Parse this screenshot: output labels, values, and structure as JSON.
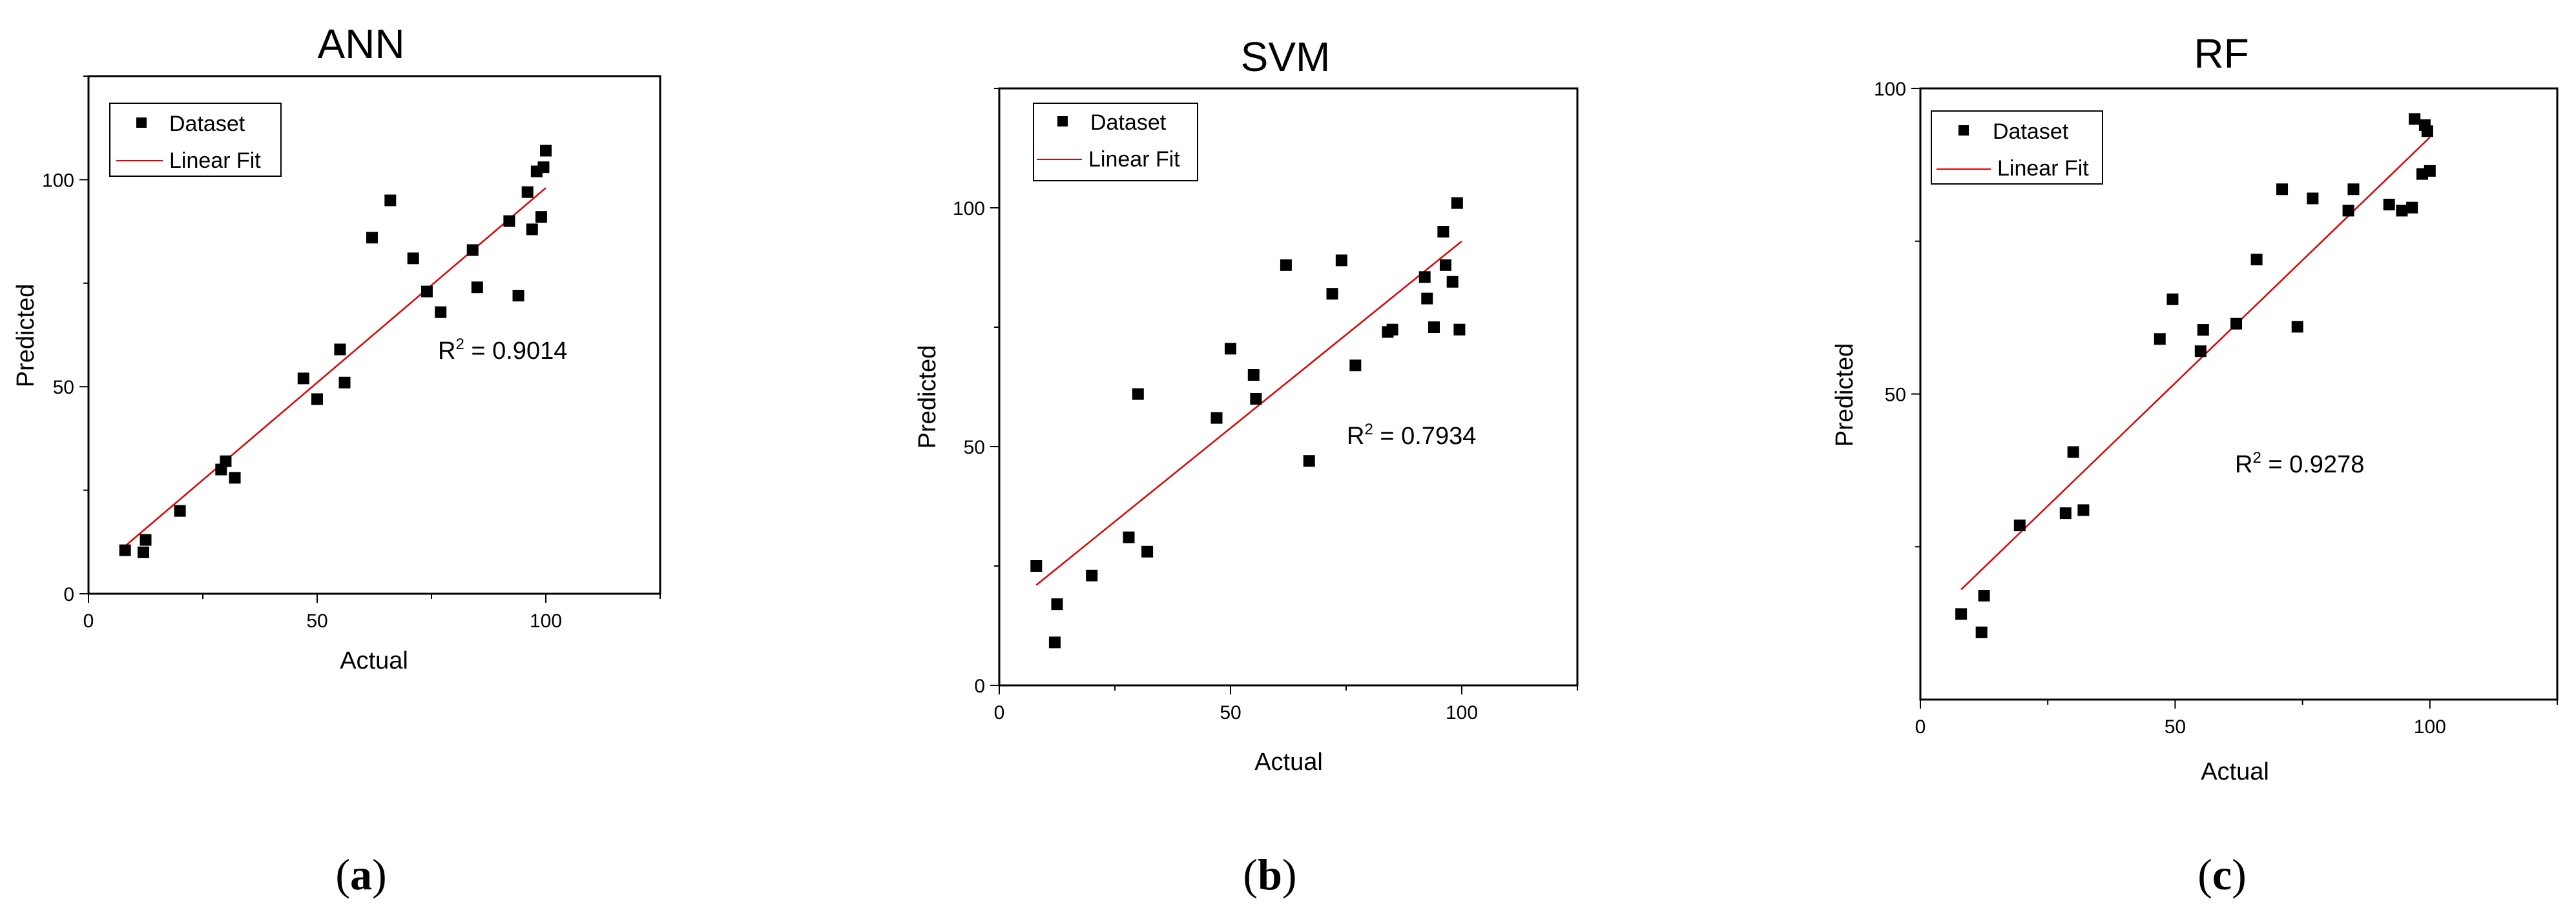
{
  "chart_data": [
    {
      "type": "scatter",
      "title": "ANN",
      "xlabel": "Actual",
      "ylabel": "Predicted",
      "xlim": [
        0,
        125
      ],
      "ylim": [
        0,
        125
      ],
      "xticks": [
        "0",
        "50",
        "100"
      ],
      "yticks": [
        "0",
        "50",
        "100"
      ],
      "xtick_values": [
        0,
        50,
        100
      ],
      "ytick_values": [
        0,
        50,
        100
      ],
      "legend": [
        "Dataset",
        "Linear Fit"
      ],
      "legend_position": "top-left",
      "annotation": {
        "prefix": "R",
        "sup": "2",
        "value": " = 0.9014"
      },
      "fit_line": {
        "x": [
          8,
          100
        ],
        "y": [
          11.5,
          98
        ]
      },
      "series": [
        {
          "name": "Dataset",
          "points": [
            [
              8,
              10.5
            ],
            [
              12,
              10
            ],
            [
              12.5,
              13
            ],
            [
              20,
              20
            ],
            [
              29,
              30
            ],
            [
              30,
              32
            ],
            [
              32,
              28
            ],
            [
              47,
              52
            ],
            [
              50,
              47
            ],
            [
              55,
              59
            ],
            [
              56,
              51
            ],
            [
              62,
              86
            ],
            [
              66,
              95
            ],
            [
              71,
              81
            ],
            [
              74,
              73
            ],
            [
              77,
              68
            ],
            [
              84,
              83
            ],
            [
              85,
              74
            ],
            [
              92,
              90
            ],
            [
              94,
              72
            ],
            [
              96,
              97
            ],
            [
              97,
              88
            ],
            [
              98,
              102
            ],
            [
              99,
              91
            ],
            [
              99.5,
              103
            ],
            [
              100,
              107
            ]
          ]
        }
      ],
      "caption": {
        "open": "(",
        "letter": "a",
        "close": ")"
      }
    },
    {
      "type": "scatter",
      "title": "SVM",
      "xlabel": "Actual",
      "ylabel": "Predicted",
      "xlim": [
        0,
        125
      ],
      "ylim": [
        0,
        125
      ],
      "xticks": [
        "0",
        "50",
        "100"
      ],
      "yticks": [
        "0",
        "50",
        "100"
      ],
      "xtick_values": [
        0,
        50,
        100
      ],
      "ytick_values": [
        0,
        50,
        100
      ],
      "legend": [
        "Dataset",
        "Linear Fit"
      ],
      "legend_position": "top-left",
      "annotation": {
        "prefix": "R",
        "sup": "2",
        "value": " = 0.7934"
      },
      "fit_line": {
        "x": [
          8,
          100
        ],
        "y": [
          21,
          93
        ]
      },
      "series": [
        {
          "name": "Dataset",
          "points": [
            [
              8,
              25
            ],
            [
              12,
              9
            ],
            [
              12.5,
              17
            ],
            [
              20,
              23
            ],
            [
              28,
              31
            ],
            [
              30,
              61
            ],
            [
              32,
              28
            ],
            [
              47,
              56
            ],
            [
              50,
              70.5
            ],
            [
              55,
              65
            ],
            [
              55.5,
              60
            ],
            [
              62,
              88
            ],
            [
              67,
              47
            ],
            [
              72,
              82
            ],
            [
              74,
              89
            ],
            [
              77,
              67
            ],
            [
              84,
              74
            ],
            [
              85,
              74.5
            ],
            [
              92,
              85.5
            ],
            [
              92.5,
              81
            ],
            [
              94,
              75
            ],
            [
              96,
              95
            ],
            [
              96.5,
              88
            ],
            [
              98,
              84.5
            ],
            [
              99,
              101
            ],
            [
              99.5,
              74.5
            ]
          ]
        }
      ],
      "caption": {
        "open": "(",
        "letter": "b",
        "close": ")"
      }
    },
    {
      "type": "scatter",
      "title": "RF",
      "xlabel": "Actual",
      "ylabel": "Predicted",
      "xlim": [
        0,
        125
      ],
      "ylim": [
        0,
        100
      ],
      "xticks": [
        "0",
        "50",
        "100"
      ],
      "yticks": [
        "50",
        "100"
      ],
      "xtick_values": [
        0,
        50,
        100
      ],
      "ytick_values": [
        50,
        100
      ],
      "legend": [
        "Dataset",
        "Linear Fit"
      ],
      "legend_position": "top-left",
      "annotation": {
        "prefix": "R",
        "sup": "2",
        "value": " = 0.9278"
      },
      "fit_line": {
        "x": [
          8,
          100
        ],
        "y": [
          18,
          92
        ]
      },
      "series": [
        {
          "name": "Dataset",
          "points": [
            [
              8,
              14
            ],
            [
              12,
              11
            ],
            [
              12.5,
              17
            ],
            [
              19.5,
              28.5
            ],
            [
              28.5,
              30.5
            ],
            [
              30,
              40.5
            ],
            [
              32,
              31
            ],
            [
              47,
              59
            ],
            [
              49.5,
              65.5
            ],
            [
              55,
              57
            ],
            [
              55.5,
              60.5
            ],
            [
              62,
              61.5
            ],
            [
              66,
              72
            ],
            [
              71,
              83.5
            ],
            [
              74,
              61
            ],
            [
              77,
              82
            ],
            [
              84,
              80
            ],
            [
              85,
              83.5
            ],
            [
              92,
              81
            ],
            [
              94.5,
              80
            ],
            [
              96.5,
              80.5
            ],
            [
              97,
              95
            ],
            [
              98.5,
              86
            ],
            [
              99,
              94
            ],
            [
              99.5,
              93
            ],
            [
              100,
              86.5
            ]
          ]
        }
      ],
      "caption": {
        "open": "(",
        "letter": "c",
        "close": ")"
      }
    }
  ]
}
